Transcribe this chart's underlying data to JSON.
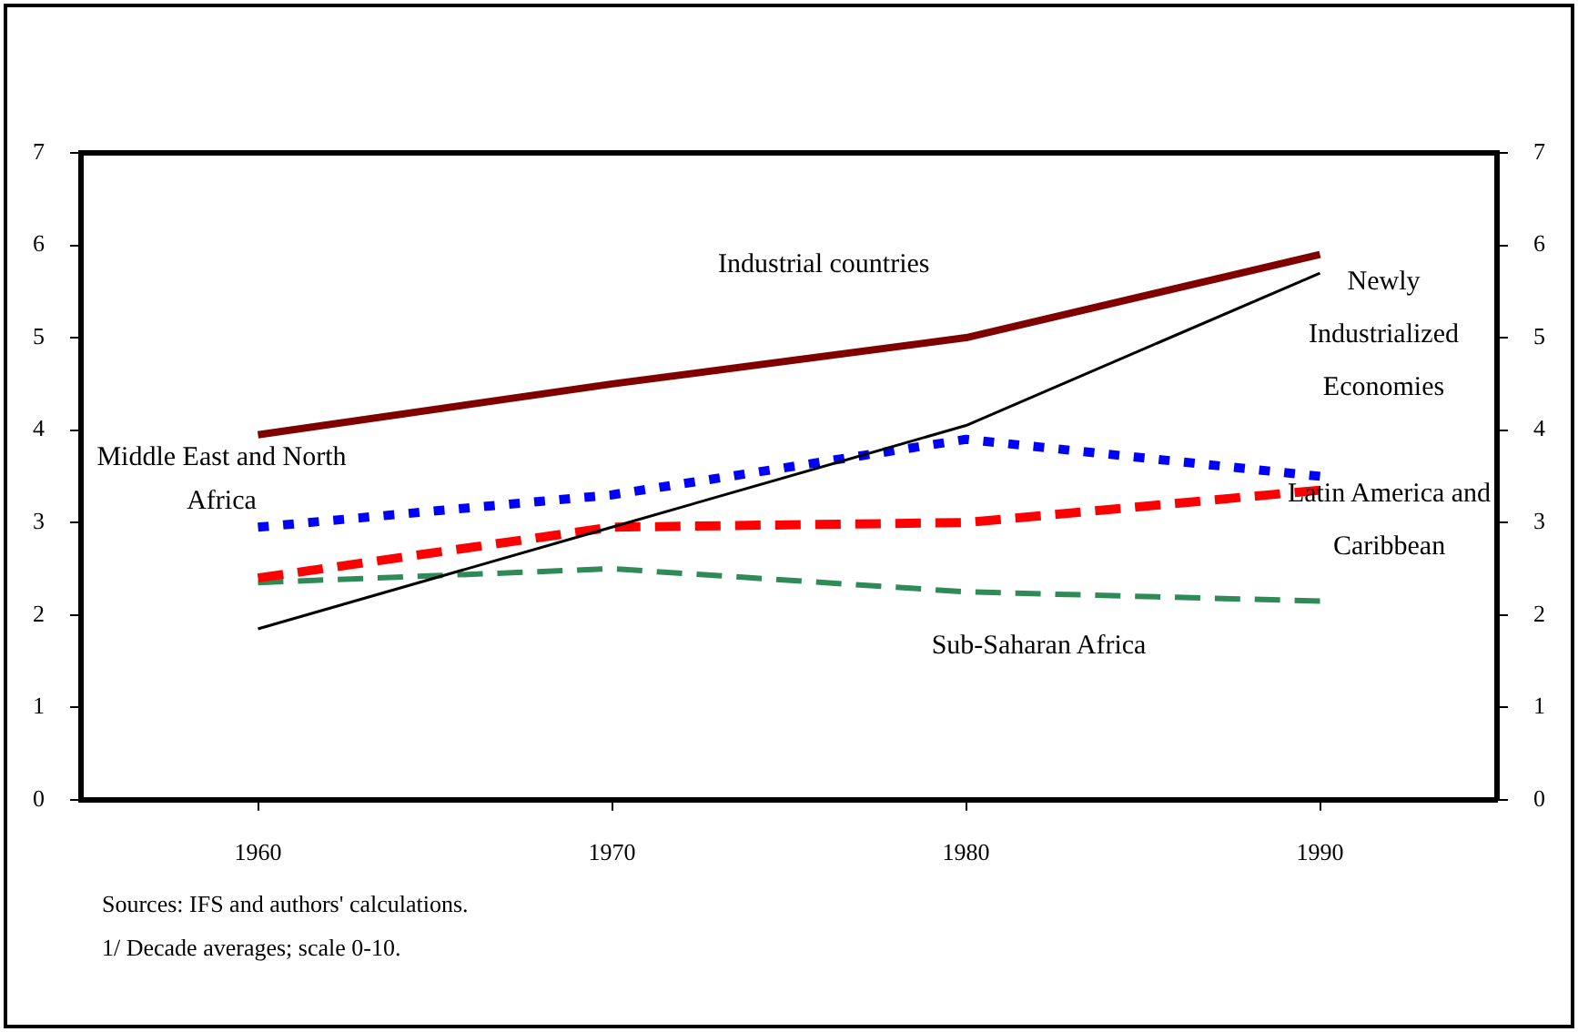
{
  "chart_data": {
    "type": "line",
    "x": [
      1960,
      1970,
      1980,
      1990
    ],
    "xlim": [
      1955,
      1995
    ],
    "xticks": [
      1960,
      1970,
      1980,
      1990
    ],
    "ylim": [
      0,
      7
    ],
    "yticks": [
      0,
      1,
      2,
      3,
      4,
      5,
      6,
      7
    ],
    "y2lim": [
      0,
      7
    ],
    "y2ticks": [
      0,
      1,
      2,
      3,
      4,
      5,
      6,
      7
    ],
    "grid": false,
    "legend": false,
    "marker": "none",
    "series": [
      {
        "name": "Industrial countries",
        "color": "#800000",
        "line_style": "solid",
        "values": [
          3.95,
          4.5,
          5.0,
          5.9
        ]
      },
      {
        "name": "Newly Industrialized Economies",
        "color": "#000000",
        "line_style": "solid",
        "values": [
          1.85,
          2.95,
          4.05,
          5.7
        ]
      },
      {
        "name": "Middle East and North Africa",
        "color": "#0000ff",
        "line_style": "dotted",
        "values": [
          2.95,
          3.3,
          3.9,
          3.5
        ]
      },
      {
        "name": "Latin America and Caribbean",
        "color": "#ff0000",
        "line_style": "dashed",
        "values": [
          2.4,
          2.95,
          3.0,
          3.35
        ]
      },
      {
        "name": "Sub-Saharan Africa",
        "color": "#2e8b57",
        "line_style": "dashed",
        "values": [
          2.35,
          2.5,
          2.25,
          2.15
        ]
      }
    ],
    "annotations": [
      "Sources: IFS and authors' calculations.",
      "1/ Decade averages; scale 0-10."
    ]
  }
}
